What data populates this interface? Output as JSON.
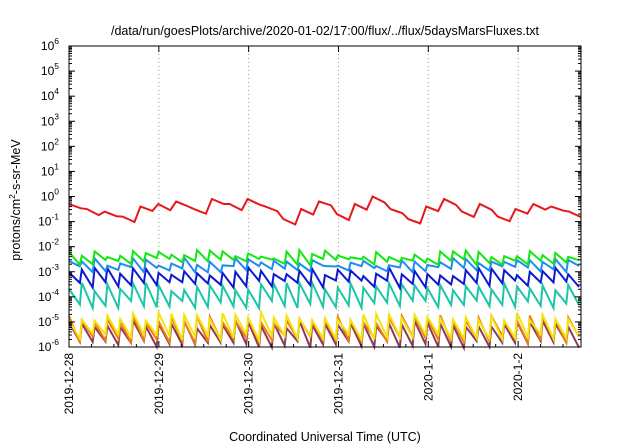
{
  "chart_data": {
    "type": "line",
    "title": "/data/run/goesPlots/archive/2020-01-02/17:00/flux/../flux/5daysMarsFluxes.txt",
    "xlabel": "Coordinated Universal Time (UTC)",
    "ylabel": {
      "base": "protons/cm",
      "sup": "2",
      "rest": "-s-sr-MeV"
    },
    "yscale": "log",
    "ylim": [
      1e-06,
      1000000.0
    ],
    "ytick_exponents": [
      -6,
      -5,
      -4,
      -3,
      -2,
      -1,
      0,
      1,
      2,
      3,
      4,
      5,
      6
    ],
    "ytick_base": "10",
    "xlim_days": [
      0,
      5.7
    ],
    "xtick_labels": [
      "2019-12-28",
      "2019-12-29",
      "2019-12-30",
      "2019-12-31",
      "2020-1-1",
      "2020-1-2"
    ],
    "grid": "vertical dotted lines at day boundaries",
    "legend": "none",
    "series": [
      {
        "color": "#e8171b",
        "peak_hours": [
          0,
          7,
          15,
          22,
          32,
          41,
          55,
          60,
          66,
          69,
          79,
          84,
          92,
          102,
          106,
          109,
          118,
          128,
          133,
          137,
          134,
          126
        ],
        "valleys_approx": [
          0.2,
          0.3,
          0.1,
          0.1
        ],
        "values_log10": [
          -0.3,
          -0.5,
          -0.6,
          -0.8,
          -0.4,
          -0.3,
          -0.2,
          -0.5,
          -0.1,
          -0.3,
          -0.1,
          -0.4,
          -0.9,
          -0.5,
          -0.2,
          -0.7,
          -0.3,
          0.0,
          -0.5,
          -0.9,
          -0.4,
          -0.1,
          -0.6,
          -0.3,
          -0.8,
          -0.5,
          -0.3,
          -0.4,
          -0.6
        ]
      },
      {
        "color": "#12e812",
        "values_log10": [
          -2.3,
          -2.6
        ]
      },
      {
        "color": "#1e8cf0",
        "values_log10": [
          -2.6,
          -2.9
        ]
      },
      {
        "color": "#0a1ad0",
        "values_log10": [
          -3.0,
          -3.5
        ]
      },
      {
        "color": "#1bc6a4",
        "values_log10": [
          -3.6,
          -4.3
        ]
      },
      {
        "color": "#f2e40c",
        "values_log10": [
          -4.8,
          -5.6
        ]
      },
      {
        "color": "#f07c14",
        "values_log10": [
          -4.9,
          -5.7
        ]
      },
      {
        "color": "#8a3a5a",
        "values_log10": [
          -5.1,
          -5.9
        ]
      }
    ]
  }
}
